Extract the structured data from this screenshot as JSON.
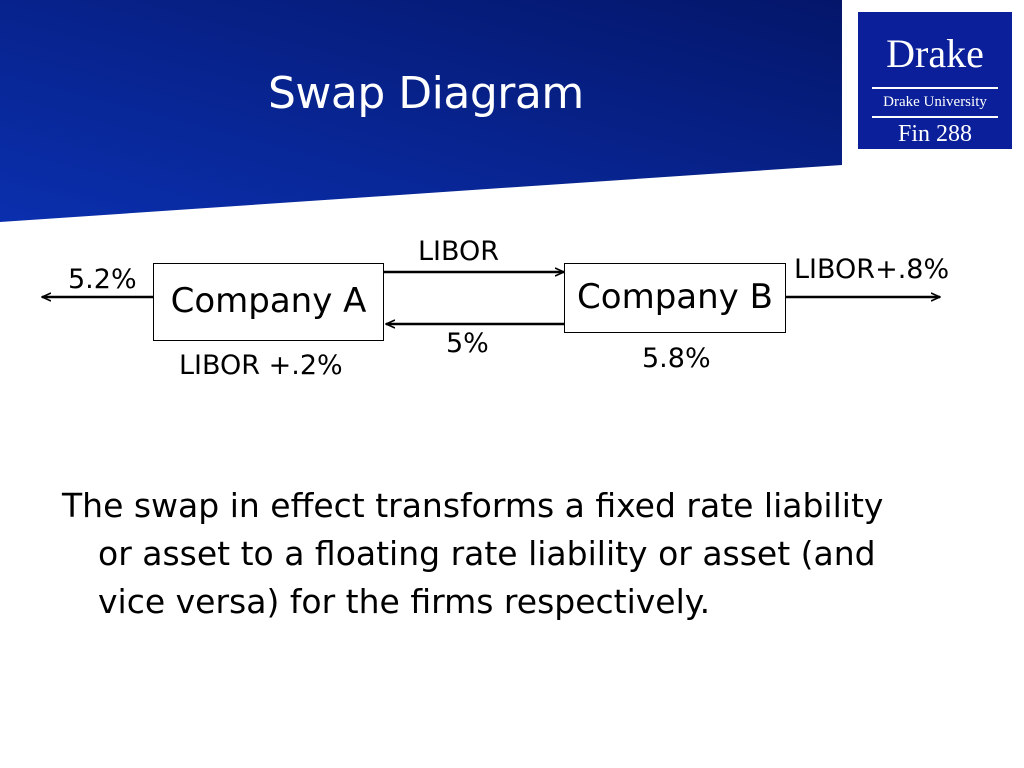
{
  "slide": {
    "title": "Swap Diagram"
  },
  "logo": {
    "name": "Drake",
    "university": "Drake University",
    "course": "Fin 288"
  },
  "diagram": {
    "company_a": "Company A",
    "company_b": "Company B",
    "libor_top": "LIBOR",
    "fixed_mid": "5%",
    "a_outflow": "5.2%",
    "a_below": "LIBOR +.2%",
    "b_outflow": "LIBOR+.8%",
    "b_below": "5.8%"
  },
  "body": {
    "lines": [
      "The swap in effect transforms a fixed rate liability",
      "or asset to a floating rate liability or asset  (and",
      "vice versa) for the firms respectively."
    ]
  },
  "colors": {
    "banner_dark": "#051a6e",
    "banner_light": "#0a2fae",
    "logo_bg": "#0a1f99"
  }
}
